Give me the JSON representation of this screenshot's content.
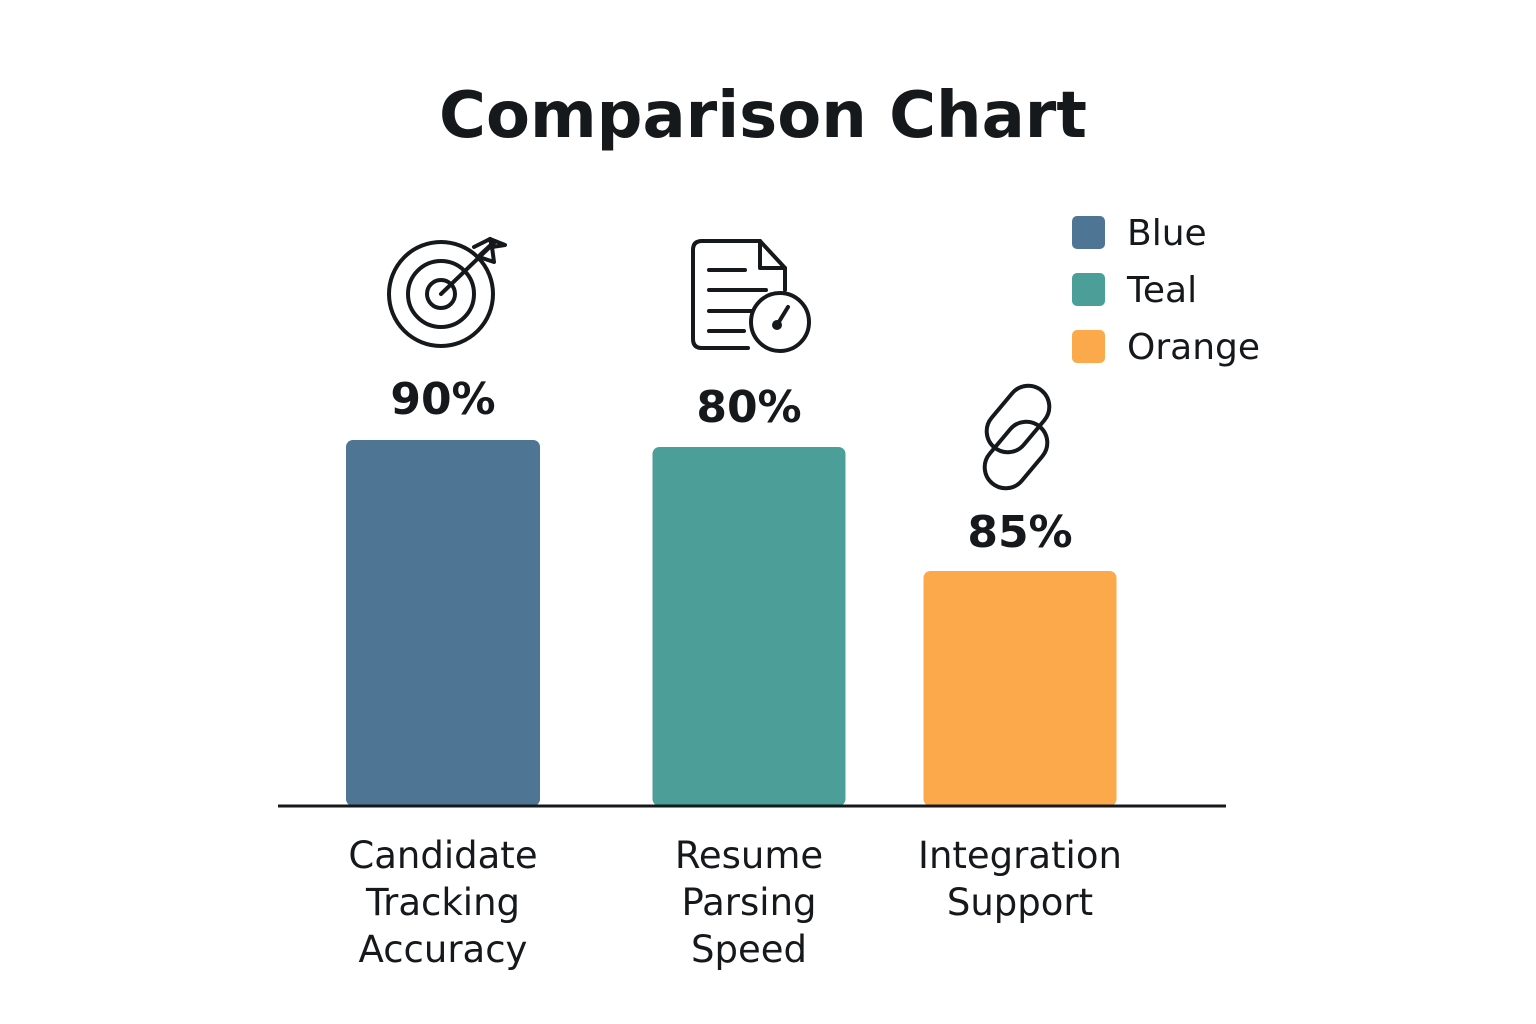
{
  "chart_data": {
    "type": "bar",
    "title": "Comparison Chart",
    "xlabel": "",
    "ylabel": "",
    "ylim": [
      0,
      100
    ],
    "grid": false,
    "legend_position": "top-right",
    "categories": [
      [
        "Candidate",
        "Tracking",
        "Accuracy"
      ],
      [
        "Resume",
        "Parsing",
        "Speed"
      ],
      [
        "Integration",
        "Support"
      ]
    ],
    "values": [
      90,
      80,
      85
    ],
    "value_labels": [
      "90%",
      "80%",
      "85%"
    ],
    "icons": [
      "target-icon",
      "document-gauge-icon",
      "chain-link-icon"
    ],
    "bar_colors": [
      "#4f7594",
      "#4b9f98",
      "#fca94b"
    ],
    "legend": [
      {
        "label": "Blue",
        "color": "#4f7594"
      },
      {
        "label": "Teal",
        "color": "#4b9f98"
      },
      {
        "label": "Orange",
        "color": "#fca94b"
      }
    ]
  }
}
